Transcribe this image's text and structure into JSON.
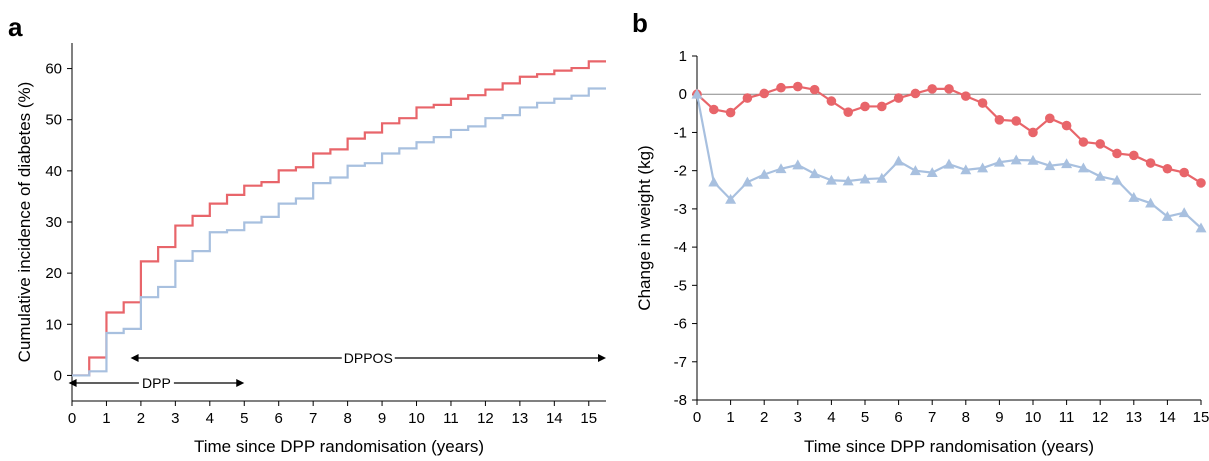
{
  "chart_data": [
    {
      "panel": "a",
      "type": "line",
      "xlabel": "Time since DPP randomisation (years)",
      "ylabel": "Cumulative incidence of diabetes (%)",
      "xlim": [
        0,
        15.5
      ],
      "ylim": [
        -5,
        65
      ],
      "xticks": [
        0,
        1,
        2,
        3,
        4,
        5,
        6,
        7,
        8,
        9,
        10,
        11,
        12,
        13,
        14,
        15
      ],
      "yticks": [
        0,
        10,
        20,
        30,
        40,
        50,
        60
      ],
      "step": true,
      "series": [
        {
          "color": "#e8656a",
          "x": [
            0,
            0.5,
            1,
            1.5,
            2,
            2.5,
            3,
            3.5,
            4,
            4.5,
            5,
            5.5,
            6,
            6.5,
            7,
            7.5,
            8,
            8.5,
            9,
            9.5,
            10,
            10.5,
            11,
            11.5,
            12,
            12.5,
            13,
            13.5,
            14,
            14.5,
            15,
            15.5
          ],
          "y": [
            0,
            3.5,
            12.3,
            14.3,
            22.3,
            25.1,
            29.3,
            31.2,
            33.6,
            35.3,
            37.1,
            37.8,
            40.1,
            40.7,
            43.4,
            44.2,
            46.3,
            47.5,
            49.3,
            50.3,
            52.4,
            52.9,
            54.1,
            54.8,
            55.9,
            57.1,
            58.4,
            58.9,
            59.6,
            60.1,
            61.4,
            61.4
          ]
        },
        {
          "color": "#a8c0df",
          "x": [
            0,
            0.5,
            1,
            1.5,
            2,
            2.5,
            3,
            3.5,
            4,
            4.5,
            5,
            5.5,
            6,
            6.5,
            7,
            7.5,
            8,
            8.5,
            9,
            9.5,
            10,
            10.5,
            11,
            11.5,
            12,
            12.5,
            13,
            13.5,
            14,
            14.5,
            15,
            15.5
          ],
          "y": [
            0,
            0.8,
            8.3,
            9.1,
            15.3,
            17.3,
            22.4,
            24.3,
            28.0,
            28.4,
            29.9,
            31.0,
            33.6,
            34.6,
            37.6,
            38.7,
            41.0,
            41.5,
            43.4,
            44.4,
            45.6,
            46.6,
            48.0,
            48.7,
            50.3,
            50.9,
            52.4,
            53.3,
            54.1,
            54.7,
            56.1,
            56.1
          ]
        }
      ],
      "annotations": [
        {
          "label": "DPP",
          "from": -0.1,
          "to": 5
        },
        {
          "label": "DPPOS",
          "from": 1.7,
          "to": 15.5
        }
      ]
    },
    {
      "panel": "b",
      "type": "line",
      "xlabel": "Time since DPP randomisation (years)",
      "ylabel": "Change in weight (kg)",
      "xlim": [
        0,
        15
      ],
      "ylim": [
        -8,
        1
      ],
      "xticks": [
        0,
        1,
        2,
        3,
        4,
        5,
        6,
        7,
        8,
        9,
        10,
        11,
        12,
        13,
        14,
        15
      ],
      "yticks": [
        1,
        0,
        -1,
        -2,
        -3,
        -4,
        -5,
        -6,
        -7,
        -8
      ],
      "reference_line": 0,
      "series": [
        {
          "color": "#e8656a",
          "marker": "circle",
          "x": [
            0,
            0.5,
            1,
            1.5,
            2,
            2.5,
            3,
            3.5,
            4,
            4.5,
            5,
            5.5,
            6,
            6.5,
            7,
            7.5,
            8,
            8.5,
            9,
            9.5,
            10,
            10.5,
            11,
            11.5,
            12,
            12.5,
            13,
            13.5,
            14,
            14.5,
            15
          ],
          "y": [
            0,
            -0.4,
            -0.48,
            -0.1,
            0.02,
            0.17,
            0.2,
            0.12,
            -0.18,
            -0.47,
            -0.32,
            -0.32,
            -0.1,
            0.02,
            0.14,
            0.14,
            -0.05,
            -0.23,
            -0.67,
            -0.7,
            -1.0,
            -0.63,
            -0.82,
            -1.25,
            -1.3,
            -1.55,
            -1.6,
            -1.8,
            -1.95,
            -2.05,
            -2.32
          ]
        },
        {
          "color": "#a8c0df",
          "marker": "triangle",
          "x": [
            0,
            0.5,
            1,
            1.5,
            2,
            2.5,
            3,
            3.5,
            4,
            4.5,
            5,
            5.5,
            6,
            6.5,
            7,
            7.5,
            8,
            8.5,
            9,
            9.5,
            10,
            10.5,
            11,
            11.5,
            12,
            12.5,
            13,
            13.5,
            14,
            14.5,
            15
          ],
          "y": [
            0,
            -2.3,
            -2.75,
            -2.3,
            -2.1,
            -1.95,
            -1.85,
            -2.08,
            -2.25,
            -2.27,
            -2.22,
            -2.2,
            -1.75,
            -2.0,
            -2.05,
            -1.83,
            -1.98,
            -1.93,
            -1.78,
            -1.72,
            -1.73,
            -1.87,
            -1.82,
            -1.93,
            -2.15,
            -2.25,
            -2.7,
            -2.85,
            -3.2,
            -3.1,
            -3.5
          ]
        }
      ]
    }
  ]
}
